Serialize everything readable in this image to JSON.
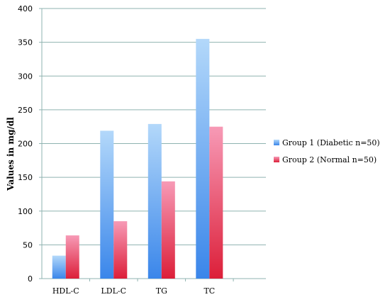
{
  "chart_data": {
    "type": "bar",
    "title": "",
    "xlabel": "",
    "ylabel": "Values in mg/dl",
    "ylim": [
      0,
      400
    ],
    "yticks": [
      0,
      50,
      100,
      150,
      200,
      250,
      300,
      350,
      400
    ],
    "categories": [
      "HDL-C",
      "LDL-C",
      "TG",
      "TC"
    ],
    "series": [
      {
        "name": "Group 1 (Diabetic n=50)",
        "values": [
          34,
          219,
          229,
          355
        ],
        "color_top": "#b3d8fa",
        "color_bottom": "#3a86ea"
      },
      {
        "name": "Group 2 (Normal n=50)",
        "values": [
          64,
          85,
          144,
          225
        ],
        "color_top": "#f79ab6",
        "color_bottom": "#dc1f39"
      }
    ],
    "grid": true,
    "legend_position": "right"
  }
}
